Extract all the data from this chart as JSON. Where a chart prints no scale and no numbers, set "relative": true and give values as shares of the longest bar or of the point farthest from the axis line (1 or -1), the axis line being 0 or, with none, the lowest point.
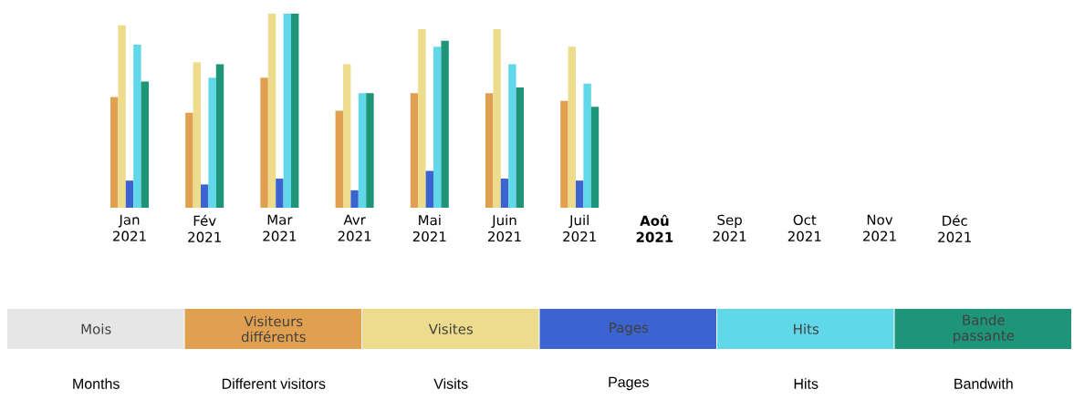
{
  "chart_data": {
    "type": "bar",
    "relative": true,
    "legend": "bottom",
    "categories": [
      "Jan 2021",
      "Fév 2021",
      "Mar 2021",
      "Avr 2021",
      "Mai 2021",
      "Juin 2021",
      "Juil 2021",
      "**Aoû 2021**",
      "Sep 2021",
      "Oct 2021",
      "Nov 2021",
      "Déc 2021"
    ],
    "series": [
      {
        "name": "Visiteurs différents",
        "color": "#e0a050",
        "values": [
          0.57,
          0.49,
          0.67,
          0.5,
          0.59,
          0.59,
          0.55,
          0,
          0,
          0,
          0,
          0
        ]
      },
      {
        "name": "Visites",
        "color": "#ecdc8c",
        "values": [
          0.94,
          0.75,
          1,
          0.74,
          0.92,
          0.92,
          0.83,
          0,
          0,
          0,
          0,
          0
        ]
      },
      {
        "name": "Pages",
        "color": "#3c64d0",
        "values": [
          0.14,
          0.12,
          0.15,
          0.09,
          0.19,
          0.15,
          0.14,
          0,
          0,
          0,
          0,
          0
        ]
      },
      {
        "name": "Hits",
        "color": "#60d8ea",
        "values": [
          0.84,
          0.67,
          1,
          0.59,
          0.83,
          0.74,
          0.64,
          0,
          0,
          0,
          0,
          0
        ]
      },
      {
        "name": "Bande passante",
        "color": "#1e9478",
        "values": [
          0.65,
          0.74,
          1,
          0.59,
          0.86,
          0.62,
          0.52,
          0,
          0,
          0,
          0,
          0
        ]
      }
    ],
    "annotations": [
      "Mois",
      "Months",
      "Different visitors",
      "Visits",
      "Pages",
      "Hits",
      "Bandwith"
    ]
  }
}
